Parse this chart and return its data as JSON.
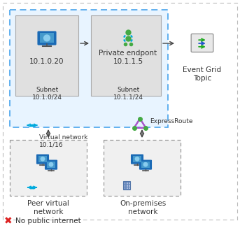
{
  "bg_color": "#ffffff",
  "subnet_fill": "#e0e0e0",
  "vnet_fill": "#e8f4ff",
  "peer_fill": "#f0f0f0",
  "onprem_fill": "#f0f0f0",
  "outer_edge": "#bbbbbb",
  "vnet_edge": "#55aaee",
  "subnet_edge": "#aaaaaa",
  "peer_edge": "#999999",
  "ac": "#444444",
  "green": "#44aa44",
  "cyan": "#00aadd",
  "purple": "#aa55cc",
  "blue_icon": "#1a6ab5",
  "red": "#dd2222",
  "fs": 7.5,
  "fs_small": 6.5,
  "subnet1_label": "10.1.0.20",
  "subnet1_sub": "Subnet\n10.1.0/24",
  "subnet2_label": "Private endpont\n10.1.1.5",
  "subnet2_sub": "Subnet\n10.1.1/24",
  "vnet_label": "Virtual network\n10.1/16",
  "peer_label": "Peer virtual\nnetwork",
  "onprem_label": "On-premises\nnetwork",
  "expressroute_label": "ExpressRoute",
  "event_grid_label": "Event Grid\nTopic",
  "no_internet_label": "No public internet"
}
